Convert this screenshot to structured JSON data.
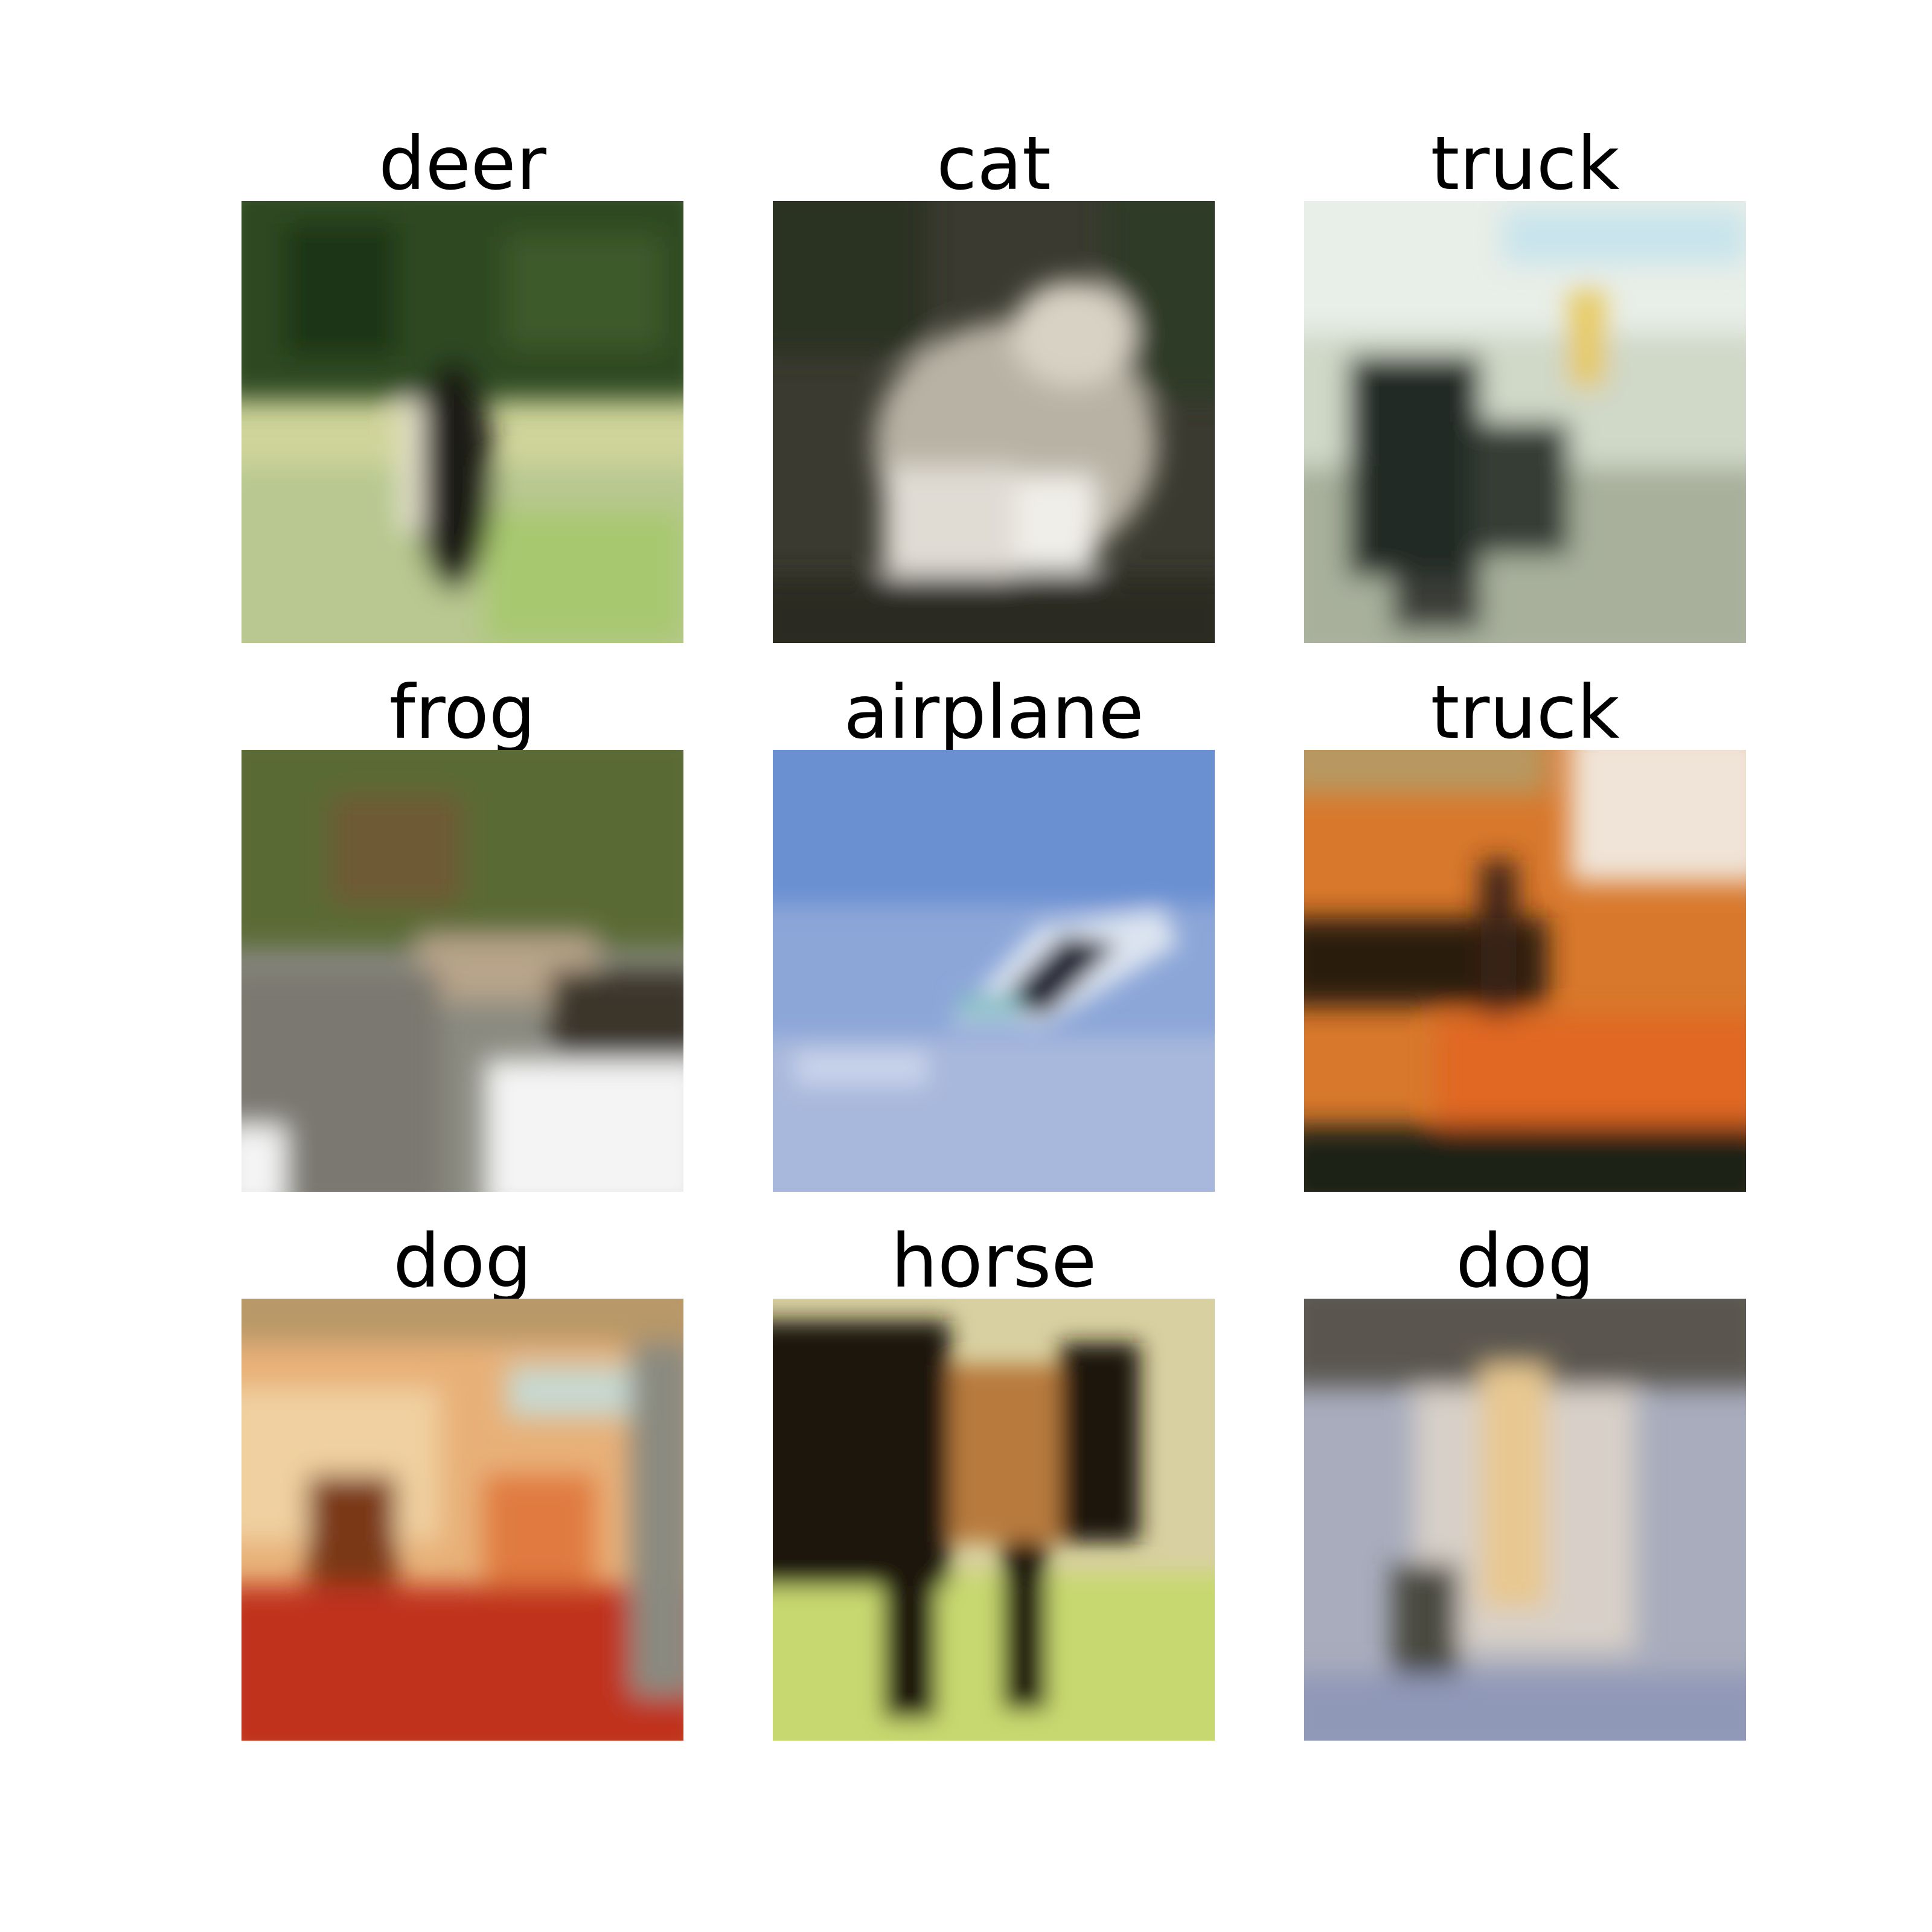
{
  "figure": {
    "background": "#ffffff",
    "title_color": "#000000",
    "images": [
      {
        "label": "deer",
        "scene": "dark green foliage above a pale sunlit meadow with a dark deer in the middle",
        "colors": [
          "#2f4a24",
          "#cfd49a",
          "#1a1a14"
        ]
      },
      {
        "label": "cat",
        "scene": "grey-white cat crouched against a dark mottled background",
        "colors": [
          "#3a3a30",
          "#d8d2c4",
          "#5a5446"
        ]
      },
      {
        "label": "truck",
        "scene": "pale street scene with a dark vehicle in front of white buildings",
        "colors": [
          "#e8eee8",
          "#a8b09c",
          "#222a26"
        ]
      },
      {
        "label": "frog",
        "scene": "green leafy upper half over a grey and white textured lower half",
        "colors": [
          "#5a6a34",
          "#8a8a80",
          "#f4f4f4"
        ]
      },
      {
        "label": "airplane",
        "scene": "small white aircraft banking across a blue sky",
        "colors": [
          "#6a90d2",
          "#b4c4e4",
          "#222030"
        ]
      },
      {
        "label": "truck",
        "scene": "large orange shape with a dark band, pale sky at top right",
        "colors": [
          "#d8782c",
          "#2a1a10",
          "#f0e4d8"
        ]
      },
      {
        "label": "dog",
        "scene": "warm orange and red blurred close-up",
        "colors": [
          "#e8b078",
          "#c0301c",
          "#f0d0a0"
        ]
      },
      {
        "label": "horse",
        "scene": "dark brown horse standing on green grass with pale background",
        "colors": [
          "#1a1410",
          "#c8d870",
          "#d8d0a0"
        ]
      },
      {
        "label": "dog",
        "scene": "pale bluish-grey blurred shape with a yellow centre",
        "colors": [
          "#a8acbc",
          "#e8c890",
          "#4a4840"
        ]
      }
    ]
  }
}
